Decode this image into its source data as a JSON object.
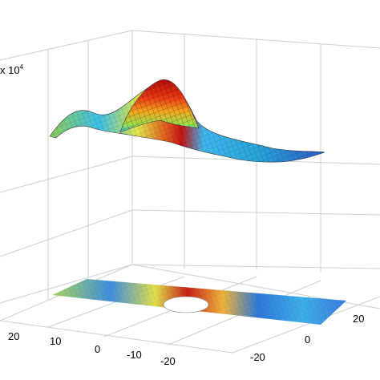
{
  "chart_data": {
    "type": "surface",
    "view": "3d-perspective",
    "colormap": "jet",
    "grid": true,
    "z_multiplier_label": "x 10",
    "z_multiplier_exponent": "4",
    "x_tick_labels": [
      "20",
      "10",
      "0",
      "-10",
      "-20"
    ],
    "y_tick_labels": [
      "20",
      "0",
      "-20"
    ],
    "surface": {
      "x_range": [
        -25,
        25
      ],
      "y_range": [
        -10,
        10
      ],
      "description_points": [
        {
          "x": -22,
          "y": 0,
          "z": 0.55
        },
        {
          "x": -12,
          "y": -4,
          "z": 0.65
        },
        {
          "x": 0,
          "y": 0,
          "z": 1.0
        },
        {
          "x": 8,
          "y": 3,
          "z": 0.35
        },
        {
          "x": 22,
          "y": 0,
          "z": 0.3
        }
      ]
    },
    "projection": "filled contour of surface on floor, with circular hole at center"
  }
}
